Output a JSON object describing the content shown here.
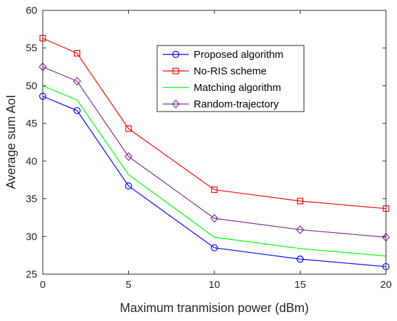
{
  "chart_data": {
    "type": "line",
    "title": "",
    "xlabel": "Maximum tranmision power (dBm)",
    "ylabel": "Average sum AoI",
    "xlim": [
      0,
      20
    ],
    "ylim": [
      25,
      60
    ],
    "xticks": [
      0,
      5,
      10,
      15,
      20
    ],
    "yticks": [
      25,
      30,
      35,
      40,
      45,
      50,
      55,
      60
    ],
    "grid": false,
    "legend_position": "upper-right",
    "x": [
      0,
      2,
      5,
      10,
      15,
      20
    ],
    "series": [
      {
        "name": "Proposed algorithm",
        "values": [
          48.6,
          46.7,
          36.7,
          28.5,
          27.0,
          26.0
        ],
        "color": "#0000ff",
        "marker": "circle"
      },
      {
        "name": "No-RIS scheme",
        "values": [
          56.3,
          54.3,
          44.3,
          36.2,
          34.7,
          33.7
        ],
        "color": "#ff0000",
        "marker": "square"
      },
      {
        "name": "Matching algorithm",
        "values": [
          50.0,
          48.1,
          38.2,
          29.9,
          28.4,
          27.4
        ],
        "color": "#00ff00",
        "marker": "none"
      },
      {
        "name": "Random-trajectory",
        "values": [
          52.5,
          50.6,
          40.6,
          32.4,
          30.9,
          29.9
        ],
        "color": "#7e2f8e",
        "marker": "diamond"
      }
    ]
  }
}
